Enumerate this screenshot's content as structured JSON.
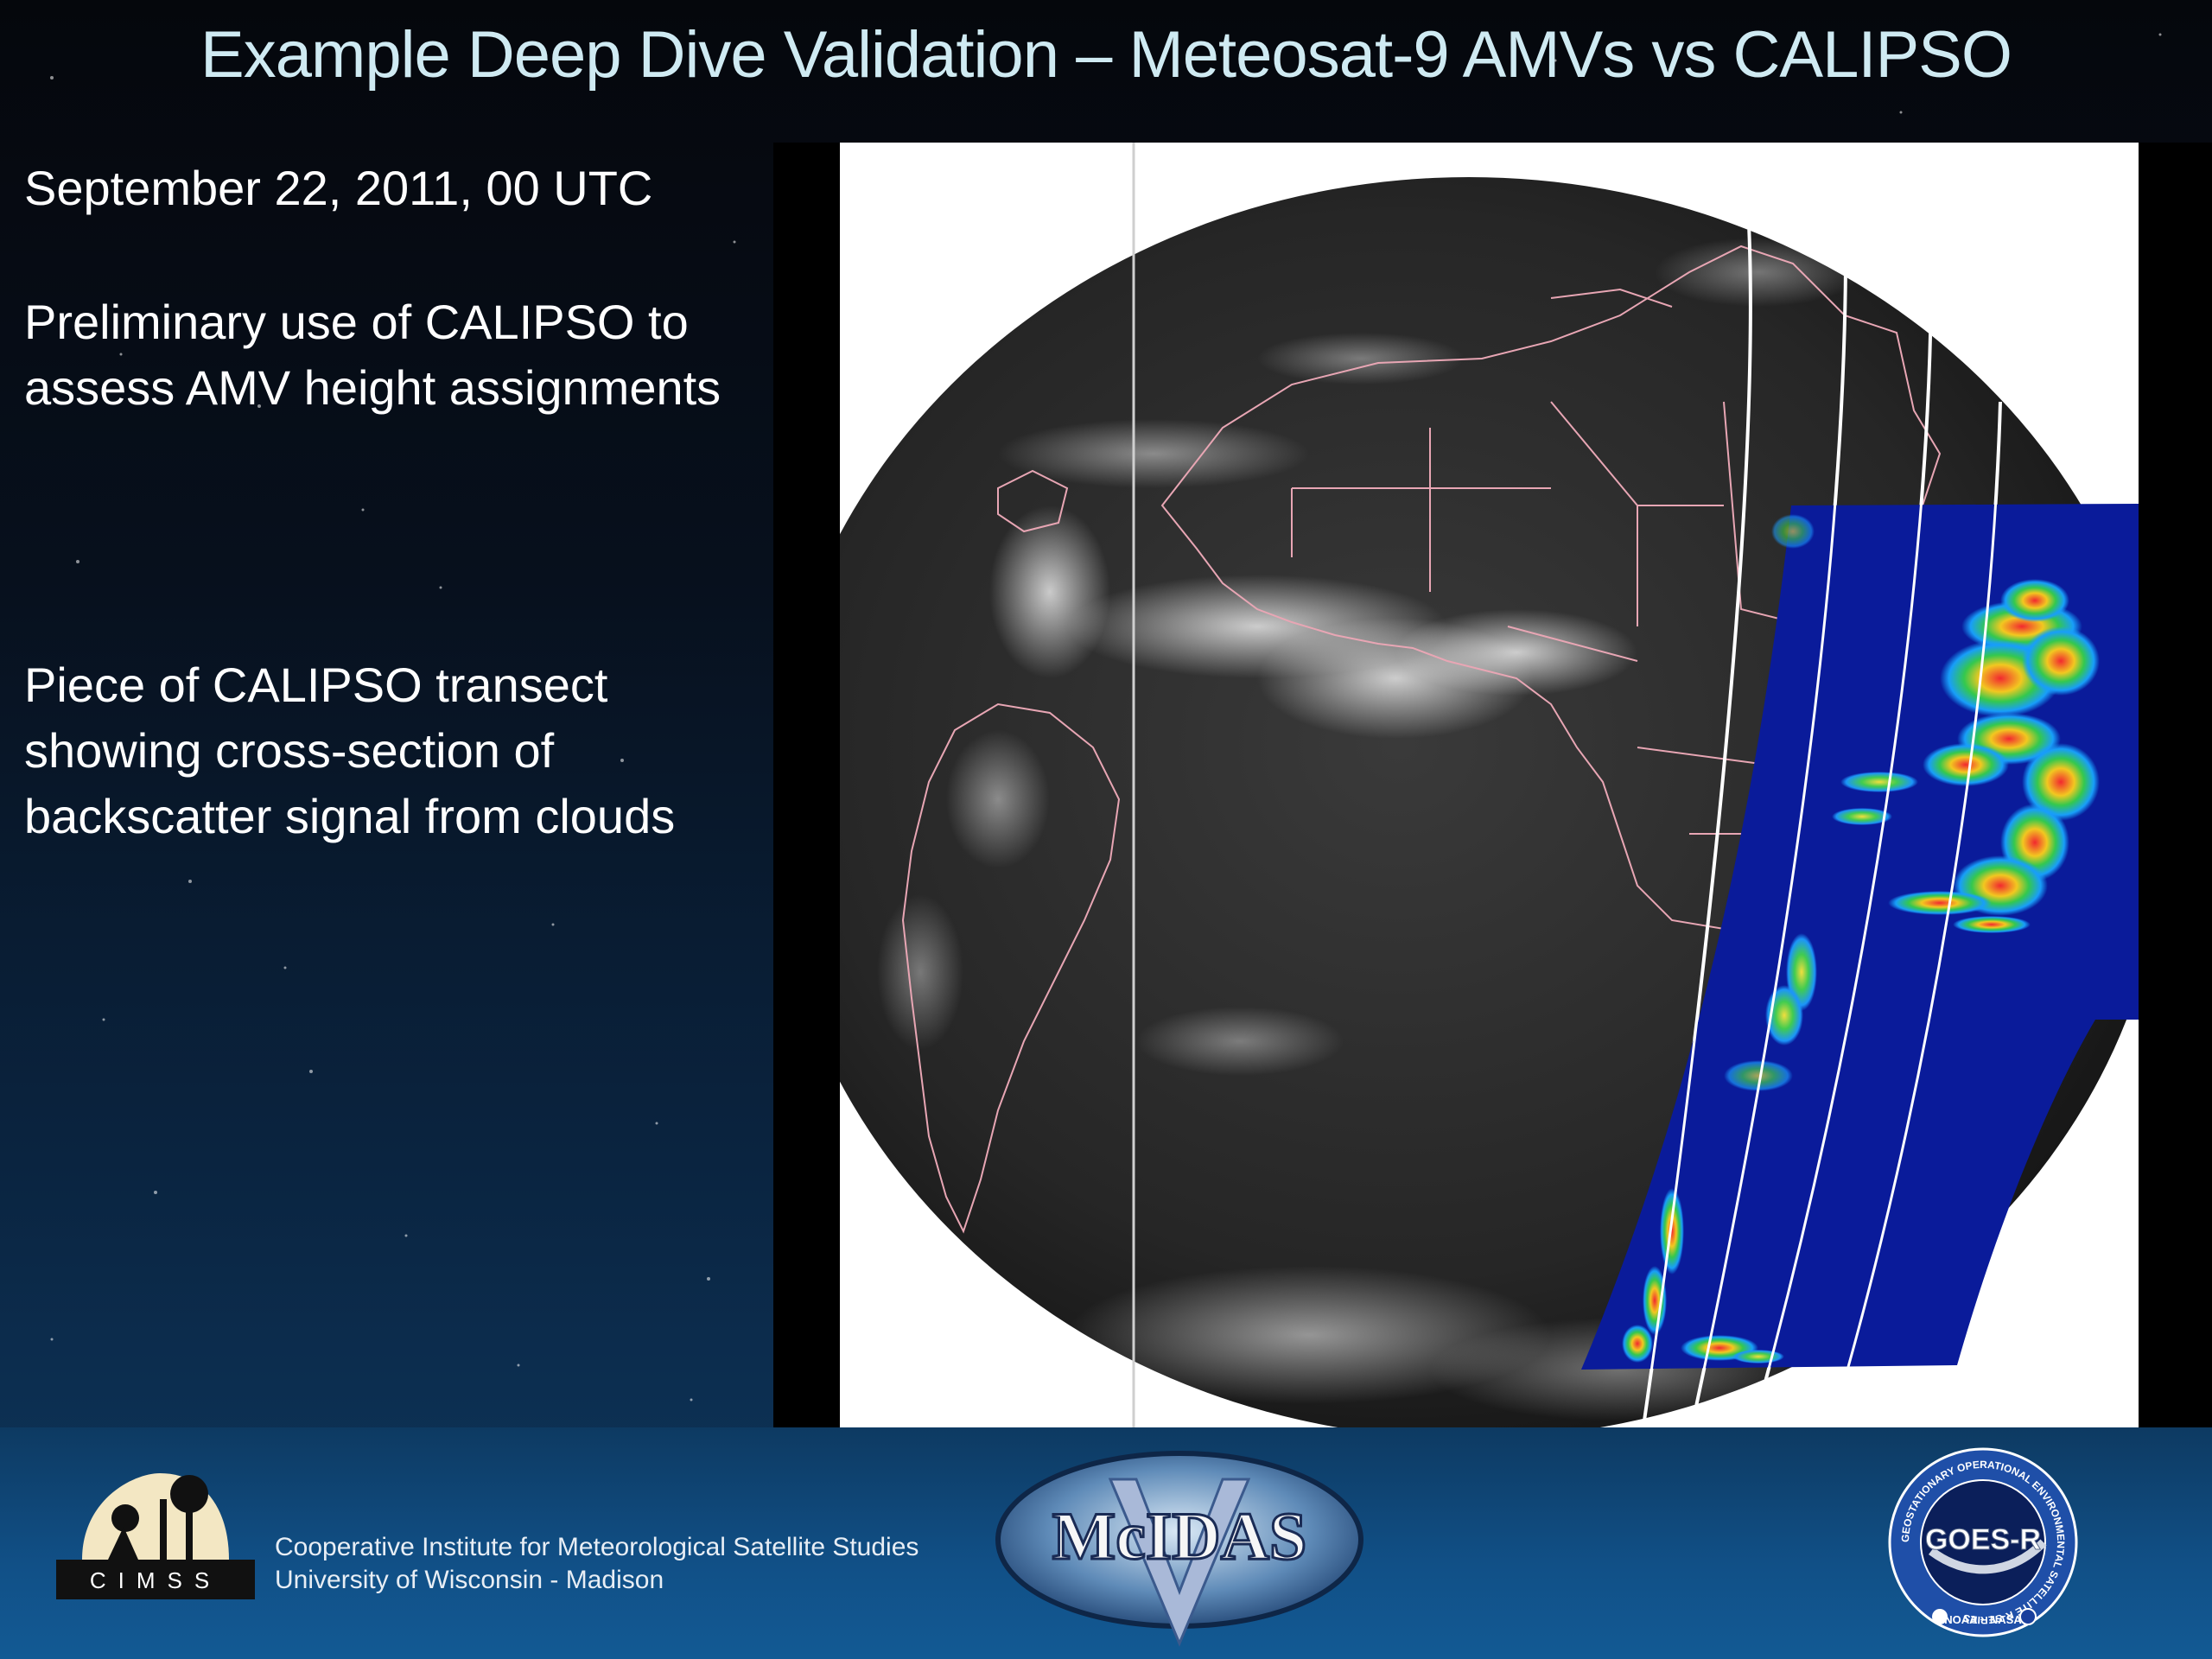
{
  "slide": {
    "title": "Example Deep Dive Validation – Meteosat-9 AMVs vs CALIPSO",
    "date_line": "September 22, 2011, 00 UTC",
    "paragraph_1": "Preliminary use of CALIPSO to assess AMV height assignments",
    "paragraph_2": "Piece of CALIPSO transect showing cross-section of backscatter signal from clouds"
  },
  "footer": {
    "cimss_logo_text": "CIMSS",
    "cimss_line_1": "Cooperative Institute for Meteorological Satellite Studies",
    "cimss_line_2": "University of Wisconsin - Madison",
    "mcidas_logo_text": "McIDAS",
    "goes_logo_text": "GOES-R",
    "goes_ring_text": "GEOSTATIONARY OPERATIONAL ENVIRONMENTAL SATELLITE R-SERIES",
    "goes_bottom_text": "NOAA ~ NASA"
  },
  "colors": {
    "title": "#cfeaf2",
    "body_text": "#ffffff",
    "footer_bar": "#115087",
    "transect_background": "#0a1b9a"
  }
}
